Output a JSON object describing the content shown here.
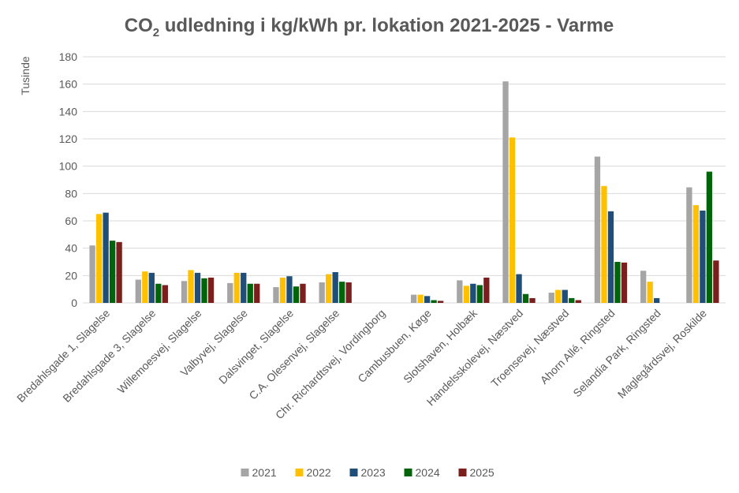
{
  "chart_data": {
    "type": "bar",
    "title_main": "CO",
    "title_sub": "2",
    "title_rest": " udledning i kg/kWh pr. lokation 2021-2025 - Varme",
    "ylabel": "Tusinde",
    "ylim": [
      0,
      180
    ],
    "yticks": [
      0,
      20,
      40,
      60,
      80,
      100,
      120,
      140,
      160,
      180
    ],
    "grid": true,
    "legend_position": "bottom",
    "categories": [
      "Bredahlsgade 1, Slagelse",
      "Bredahlsgade 3, Slagelse",
      "Willemoesvej, Slagelse",
      "Valbyvej, Slagelse",
      "Dalsvinget, Slagelse",
      "C.A. Olesenvej, Slagelse",
      "Chr. Richardtsvej, Vordingborg",
      "Cambusbuen, Køge",
      "Slotshaven, Holbæk",
      "Handelsskolevej, Næstved",
      "Troensevej, Næstved",
      "Ahorn Allé, Ringsted",
      "Selandia Park, Ringsted",
      "Maglegårdsvej, Roskilde"
    ],
    "series": [
      {
        "name": "2021",
        "color": "#a5a5a5",
        "values": [
          42,
          17,
          16,
          14.5,
          11.5,
          15,
          0,
          6,
          16.5,
          162,
          7.5,
          107,
          23.5,
          84.5
        ]
      },
      {
        "name": "2022",
        "color": "#ffc000",
        "values": [
          65,
          23,
          24,
          22,
          18.5,
          21,
          0,
          6,
          12.5,
          121,
          9.5,
          85.5,
          15.5,
          71.5
        ]
      },
      {
        "name": "2023",
        "color": "#1f4e79",
        "values": [
          66,
          22,
          22,
          22,
          19.5,
          22.5,
          0,
          5,
          14,
          21,
          9.5,
          67,
          3.5,
          67.5
        ]
      },
      {
        "name": "2024",
        "color": "#00640a",
        "values": [
          45.5,
          14,
          18,
          14,
          12,
          15.5,
          0,
          2,
          13,
          6.5,
          3.5,
          30,
          0,
          96
        ]
      },
      {
        "name": "2025",
        "color": "#7b1e1e",
        "values": [
          44.5,
          13,
          18.5,
          14,
          14,
          15,
          0,
          1.5,
          18.5,
          3.5,
          2,
          29.5,
          0,
          31
        ]
      }
    ]
  }
}
